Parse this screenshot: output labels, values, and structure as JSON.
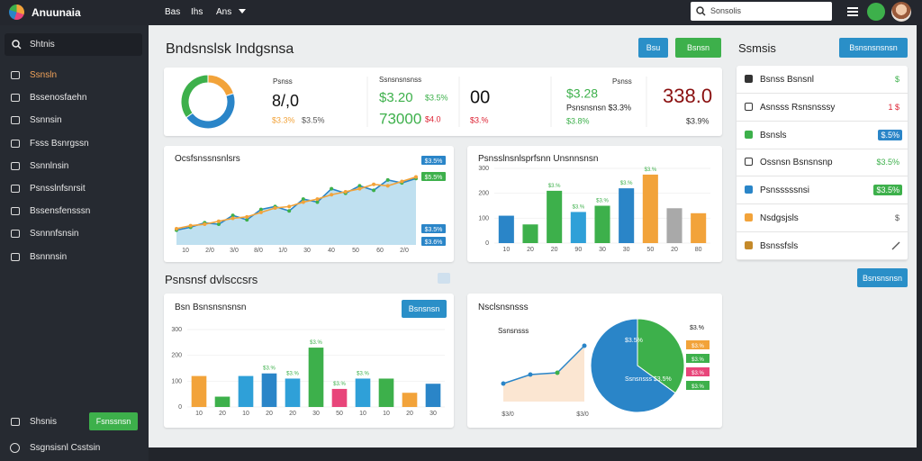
{
  "topbar": {
    "brand": "Anuunaia",
    "menu": [
      "Bas",
      "Ihs",
      "Ans"
    ],
    "search": "Sonsolis"
  },
  "sidebar": {
    "search": "Shtnis",
    "items": [
      "Ssnsln",
      "Bssenosfaehn",
      "Ssnnsin",
      "Fsss Bsnrgssn",
      "Ssnnlnsin",
      "Psnsslnfsnrsit",
      "Bssensfensssn",
      "Ssnnnfsnsin",
      "Bsnnnsin"
    ],
    "footer_item": "Shsnis",
    "footer_button": "Fsnssnsn",
    "footer_link": "Ssgnsisnl Csstsin"
  },
  "header": {
    "title": "Bndsnslsk Indgsnsa",
    "buttons": [
      "Bsu",
      "Bsnsn"
    ]
  },
  "kpi": {
    "donut": {
      "values": [
        20,
        45,
        35
      ],
      "colors": [
        "#f2a33a",
        "#2a85c8",
        "#3db04b"
      ]
    },
    "texts": [
      "Psnss",
      "8/,0",
      "$3.3%",
      "$3.5%",
      "Ssnsnsnsnss",
      "$3.20",
      "$3.5%",
      "73000",
      "$4.0",
      "00",
      "$3.%",
      "$3.28",
      "Psnss",
      "Psnsnsnsn $3.3%",
      "$3.8%",
      "338.0",
      "$3.9%"
    ]
  },
  "line_chart": {
    "title": "Ocsfsnssnsnlsrs",
    "ylim": [
      0,
      100
    ],
    "series": [
      {
        "color": "#2a85c8",
        "values": [
          20,
          24,
          30,
          28,
          40,
          34,
          48,
          52,
          46,
          62,
          58,
          76,
          70,
          80,
          74,
          88,
          84,
          90
        ]
      },
      {
        "color": "#f2a33a",
        "values": [
          22,
          26,
          28,
          32,
          36,
          38,
          44,
          50,
          52,
          58,
          62,
          68,
          72,
          76,
          82,
          80,
          86,
          92
        ]
      }
    ],
    "x_labels": [
      "10",
      "2/0",
      "3/0",
      "8/0",
      "1/0",
      "30",
      "40",
      "50",
      "60",
      "2/0"
    ],
    "badges": [
      "$3.5%",
      "$5.5%",
      "$3.5%",
      "$3.6%"
    ]
  },
  "bar_chart": {
    "title": "Psnsslnsnlsprfsnn Unsnnsnsn",
    "ylim": [
      0,
      300
    ],
    "yticks": [
      0,
      100,
      200,
      300
    ],
    "values": [
      110,
      75,
      210,
      125,
      150,
      220,
      275,
      140,
      120
    ],
    "colors": [
      "#2a85c8",
      "#3db04b",
      "#3db04b",
      "#2fa0d8",
      "#3db04b",
      "#2a85c8",
      "#f2a33a",
      "#a9a9a9",
      "#f2a33a"
    ],
    "categories": [
      "10",
      "20",
      "20",
      "90",
      "30",
      "30",
      "50",
      "20",
      "80"
    ],
    "annotations": [
      "$3.%",
      "$3.%",
      "$3.%",
      "$3.%",
      "$3.%"
    ]
  },
  "section": {
    "title": "Psnsnsf dvlsccsrs"
  },
  "bar_chart2": {
    "title": "Bsn Bsnsnsnsnsn",
    "button": "Bsnsnsn",
    "ylim": [
      0,
      300
    ],
    "yticks": [
      0,
      100,
      200,
      300
    ],
    "values": [
      120,
      40,
      120,
      130,
      110,
      230,
      70,
      110,
      110,
      55,
      90
    ],
    "colors": [
      "#f2a33a",
      "#3db04b",
      "#2fa0d8",
      "#2a85c8",
      "#2fa0d8",
      "#3db04b",
      "#e8457a",
      "#2fa0d8",
      "#3db04b",
      "#f2a33a",
      "#2a85c8"
    ],
    "categories": [
      "10",
      "20",
      "10",
      "20",
      "20",
      "30",
      "50",
      "10",
      "10",
      "20",
      "30"
    ],
    "annotations": [
      "$3.%",
      "$3.%",
      "$3.%",
      "$3.%",
      "$3.%"
    ]
  },
  "pie_card": {
    "title": "Nsclsnsnsss",
    "area_label": "Ssnsnsss",
    "area_values": [
      20,
      30,
      32,
      62
    ],
    "area_x_labels": [
      "$3/0",
      "$3/0"
    ],
    "pie": {
      "values": [
        35,
        65
      ],
      "colors": [
        "#3db04b",
        "#2a85c8"
      ],
      "labels": [
        "$3.5%",
        "Ssnsnsss $3.5%"
      ]
    },
    "legend": [
      {
        "color": "#3db04b",
        "label": "$3.%"
      },
      {
        "color": "#f2a33a",
        "label": "$3.%"
      },
      {
        "color": "#3db04b",
        "label": "$3.%"
      },
      {
        "color": "#e8457a",
        "label": "$3.%"
      },
      {
        "color": "#3db04b",
        "label": "$3.%"
      }
    ]
  },
  "side_panel": {
    "title": "Ssmsis",
    "button": "Bsnsnsnsnsn",
    "rows": [
      {
        "label": "Bsnss Bsnsnl",
        "value": "$"
      },
      {
        "label": "Asnsss Rsnsnsssy",
        "value": "1 $"
      },
      {
        "label": "Bsnsls",
        "value": "$.5%"
      },
      {
        "label": "Ossnsn Bsnsnsnp",
        "value": "$3.5%"
      },
      {
        "label": "Psnsssssnsi",
        "value": "$3.5%"
      },
      {
        "label": "Nsdgsjsls",
        "value": "$"
      },
      {
        "label": "Bsnssfsls"
      }
    ],
    "footer_button": "Bsnsnsnsn"
  }
}
